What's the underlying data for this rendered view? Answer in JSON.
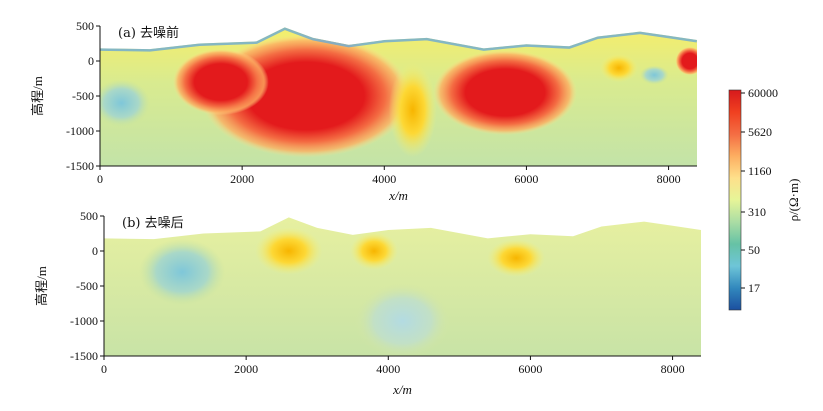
{
  "chart_data": [
    {
      "type": "heatmap",
      "panel_label": "(a) 去噪前",
      "xlabel": "x/m",
      "ylabel": "高程/m",
      "xlim": [
        0,
        8400
      ],
      "ylim": [
        -1500,
        500
      ],
      "x_ticks": [
        "0",
        "2000",
        "4000",
        "6000",
        "8000"
      ],
      "y_ticks": [
        "500",
        "0",
        "-500",
        "-1000",
        "-1500"
      ],
      "anomalies": [
        {
          "x": 2900,
          "y": -500,
          "rx": 1100,
          "ry": 650,
          "level": "high"
        },
        {
          "x": 1700,
          "y": -300,
          "rx": 500,
          "ry": 350,
          "level": "high"
        },
        {
          "x": 5700,
          "y": -450,
          "rx": 750,
          "ry": 450,
          "level": "high"
        },
        {
          "x": 4400,
          "y": -700,
          "rx": 250,
          "ry": 500,
          "level": "medium"
        },
        {
          "x": 7300,
          "y": -100,
          "rx": 200,
          "ry": 150,
          "level": "medium"
        },
        {
          "x": 8300,
          "y": 0,
          "rx": 150,
          "ry": 150,
          "level": "high"
        },
        {
          "x": 7800,
          "y": -200,
          "rx": 150,
          "ry": 100,
          "level": "low"
        },
        {
          "x": 300,
          "y": -600,
          "rx": 300,
          "ry": 250,
          "level": "low"
        }
      ],
      "topography": [
        [
          0,
          180
        ],
        [
          700,
          170
        ],
        [
          1400,
          250
        ],
        [
          2200,
          280
        ],
        [
          2600,
          480
        ],
        [
          3000,
          330
        ],
        [
          3500,
          230
        ],
        [
          4000,
          300
        ],
        [
          4600,
          330
        ],
        [
          5400,
          180
        ],
        [
          6000,
          240
        ],
        [
          6600,
          210
        ],
        [
          7000,
          350
        ],
        [
          7600,
          420
        ],
        [
          8000,
          360
        ],
        [
          8400,
          300
        ]
      ]
    },
    {
      "type": "heatmap",
      "panel_label": "(b) 去噪后",
      "xlabel": "x/m",
      "ylabel": "高程/m",
      "xlim": [
        0,
        8400
      ],
      "ylim": [
        -1500,
        500
      ],
      "x_ticks": [
        "0",
        "2000",
        "4000",
        "6000",
        "8000"
      ],
      "y_ticks": [
        "500",
        "0",
        "-500",
        "-1000",
        "-1500"
      ],
      "anomalies": [
        {
          "x": 2600,
          "y": 0,
          "rx": 350,
          "ry": 250,
          "level": "medium"
        },
        {
          "x": 3800,
          "y": 0,
          "rx": 250,
          "ry": 200,
          "level": "medium"
        },
        {
          "x": 5800,
          "y": -100,
          "rx": 300,
          "ry": 200,
          "level": "medium"
        },
        {
          "x": 1100,
          "y": -300,
          "rx": 450,
          "ry": 350,
          "level": "low"
        },
        {
          "x": 4200,
          "y": -1000,
          "rx": 500,
          "ry": 400,
          "level": "cool"
        }
      ],
      "topography": [
        [
          0,
          180
        ],
        [
          700,
          170
        ],
        [
          1400,
          250
        ],
        [
          2200,
          280
        ],
        [
          2600,
          480
        ],
        [
          3000,
          330
        ],
        [
          3500,
          230
        ],
        [
          4000,
          300
        ],
        [
          4600,
          330
        ],
        [
          5400,
          180
        ],
        [
          6000,
          240
        ],
        [
          6600,
          210
        ],
        [
          7000,
          350
        ],
        [
          7600,
          420
        ],
        [
          8000,
          360
        ],
        [
          8400,
          300
        ]
      ]
    }
  ],
  "colorbar": {
    "label": "ρ/(Ω·m)",
    "ticks": [
      "60000",
      "5620",
      "1160",
      "310",
      "50",
      "17"
    ],
    "colors": [
      "#d7191c",
      "#f04020",
      "#f46d43",
      "#fdae61",
      "#fee08b",
      "#e6f598",
      "#abdda4",
      "#66c2a5",
      "#6ec5d8",
      "#3288bd",
      "#1b4fa0"
    ]
  }
}
